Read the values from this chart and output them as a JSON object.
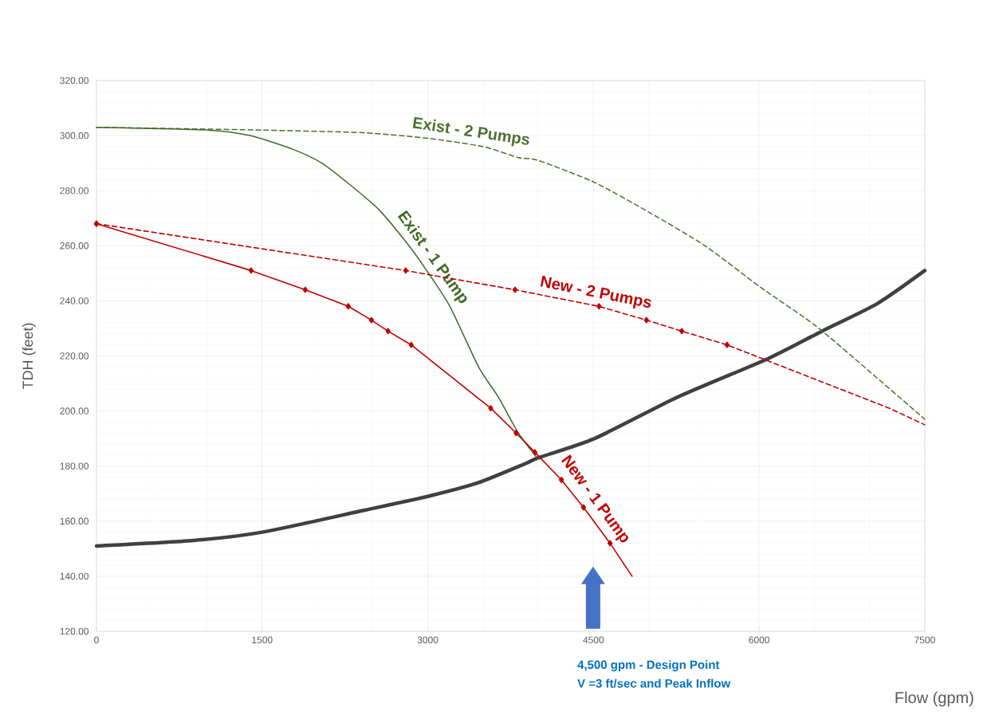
{
  "chart_data": {
    "type": "line",
    "xlabel": "Flow (gpm)",
    "ylabel": "TDH (feet)",
    "xlim": [
      0,
      7500
    ],
    "xticks": [
      0,
      1500,
      3000,
      4500,
      6000,
      7500
    ],
    "ylim": [
      120,
      320
    ],
    "yticks": [
      {
        "value": 120,
        "label": "120.00"
      },
      {
        "value": 140,
        "label": "140.00"
      },
      {
        "value": 160,
        "label": "160.00"
      },
      {
        "value": 180,
        "label": "180.00"
      },
      {
        "value": 200,
        "label": "200.00"
      },
      {
        "value": 220,
        "label": "220.00"
      },
      {
        "value": 240,
        "label": "240.00"
      },
      {
        "value": 260,
        "label": "260.00"
      },
      {
        "value": 280,
        "label": "280.00"
      },
      {
        "value": 300,
        "label": "300.00"
      },
      {
        "value": 320,
        "label": "320.00"
      }
    ],
    "grid": true,
    "series": [
      {
        "color": "#404040",
        "line_style": "solid",
        "marker": "none",
        "x": [
          0,
          880,
          1500,
          2430,
          3000,
          3460,
          3890,
          4000,
          4510,
          5260,
          6080,
          6570,
          7070,
          7500
        ],
        "values": [
          151,
          153,
          156,
          164,
          169,
          174,
          181,
          183,
          190,
          205,
          219,
          229,
          239,
          251
        ]
      },
      {
        "name": "Exist - 2 Pumps",
        "color": "#4e7030",
        "line_style": "dashed",
        "marker": "none",
        "x": [
          0,
          1500,
          2430,
          3000,
          3500,
          3820,
          4000,
          4510,
          5010,
          5510,
          6010,
          6510,
          7010,
          7500
        ],
        "values": [
          303,
          302,
          301,
          299,
          296,
          292,
          291,
          283,
          272,
          260,
          245,
          231,
          214,
          197
        ]
      },
      {
        "name": "Exist - 1 Pump",
        "color": "#3f6a25",
        "line_style": "solid",
        "marker": "none",
        "x": [
          0,
          1010,
          1390,
          1780,
          2040,
          2300,
          2560,
          2810,
          2990,
          3200,
          3460,
          3640,
          3820,
          3990
        ],
        "values": [
          303,
          302,
          300,
          295,
          290,
          282,
          273,
          261,
          251,
          238,
          216,
          205,
          192,
          183
        ]
      },
      {
        "name": "New - 2 Pumps",
        "color": "#c00000",
        "line_style": "dashed",
        "marker": "diamond",
        "x": [
          0,
          2800,
          3790,
          4550,
          4980,
          5300,
          5710,
          7180,
          7500
        ],
        "values": [
          268,
          251,
          244,
          238,
          233,
          229,
          224,
          201,
          195
        ]
      },
      {
        "name": "New - 1 Pump",
        "color": "#c00000",
        "line_style": "solid",
        "marker": "diamond",
        "x": [
          0,
          1400,
          1890,
          2280,
          2490,
          2640,
          2850,
          3570,
          3800,
          3970,
          4210,
          4410,
          4650,
          4850
        ],
        "values": [
          268,
          251,
          244,
          238,
          233,
          229,
          224,
          201,
          192,
          185,
          175,
          165,
          152,
          140
        ]
      }
    ],
    "annotations": [
      "4,500 gpm - Design Point",
      "V =3 ft/sec and Peak Inflow"
    ]
  }
}
